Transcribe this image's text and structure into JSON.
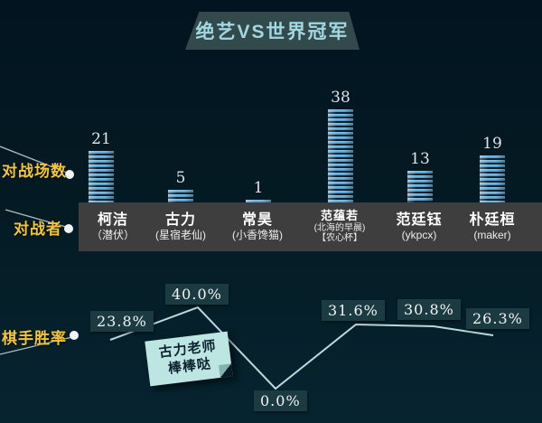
{
  "title": "绝艺VS世界冠军",
  "labels": {
    "matches": "对战场数",
    "players": "对战者",
    "winrate": "棋手胜率"
  },
  "annotation": {
    "line1": "古力老师",
    "line2": "棒棒哒"
  },
  "colors": {
    "background": "#041a23",
    "title_bg": "#324a4c",
    "title_text": "#a3d8e2",
    "bar_blue": "#6fb2da",
    "label_yellow": "#f2c53d",
    "line": "#bcd8da",
    "band_bg": "#3e3e3e",
    "pct_box_bg": "#1b3a42",
    "note_bg": "#bde5e2"
  },
  "chart_data": {
    "type": "bar+line",
    "title": "绝艺VS世界冠军",
    "categories": [
      "柯洁",
      "古力",
      "常昊",
      "范蕴若",
      "范廷钰",
      "朴廷桓"
    ],
    "players": [
      {
        "name": "柯洁",
        "sub": [
          "（潜伏）"
        ],
        "small": false
      },
      {
        "name": "古力",
        "sub": [
          "(星宿老仙)"
        ],
        "small": false
      },
      {
        "name": "常昊",
        "sub": [
          "(小香馋猫)"
        ],
        "small": false
      },
      {
        "name": "范蕴若",
        "sub": [
          "(北海的早晨)",
          "【农心杯】"
        ],
        "small": true
      },
      {
        "name": "范廷钰",
        "sub": [
          "(ykpcx)"
        ],
        "small": false
      },
      {
        "name": "朴廷桓",
        "sub": [
          "(maker)"
        ],
        "small": false
      }
    ],
    "series": [
      {
        "name": "对战场数",
        "type": "bar",
        "values": [
          21,
          5,
          1,
          38,
          13,
          19
        ]
      },
      {
        "name": "棋手胜率",
        "type": "line",
        "unit": "%",
        "values": [
          23.8,
          40.0,
          0.0,
          31.6,
          30.8,
          26.3
        ]
      }
    ],
    "annotation": "古力老师棒棒哒",
    "legend": "none",
    "grid": false
  }
}
